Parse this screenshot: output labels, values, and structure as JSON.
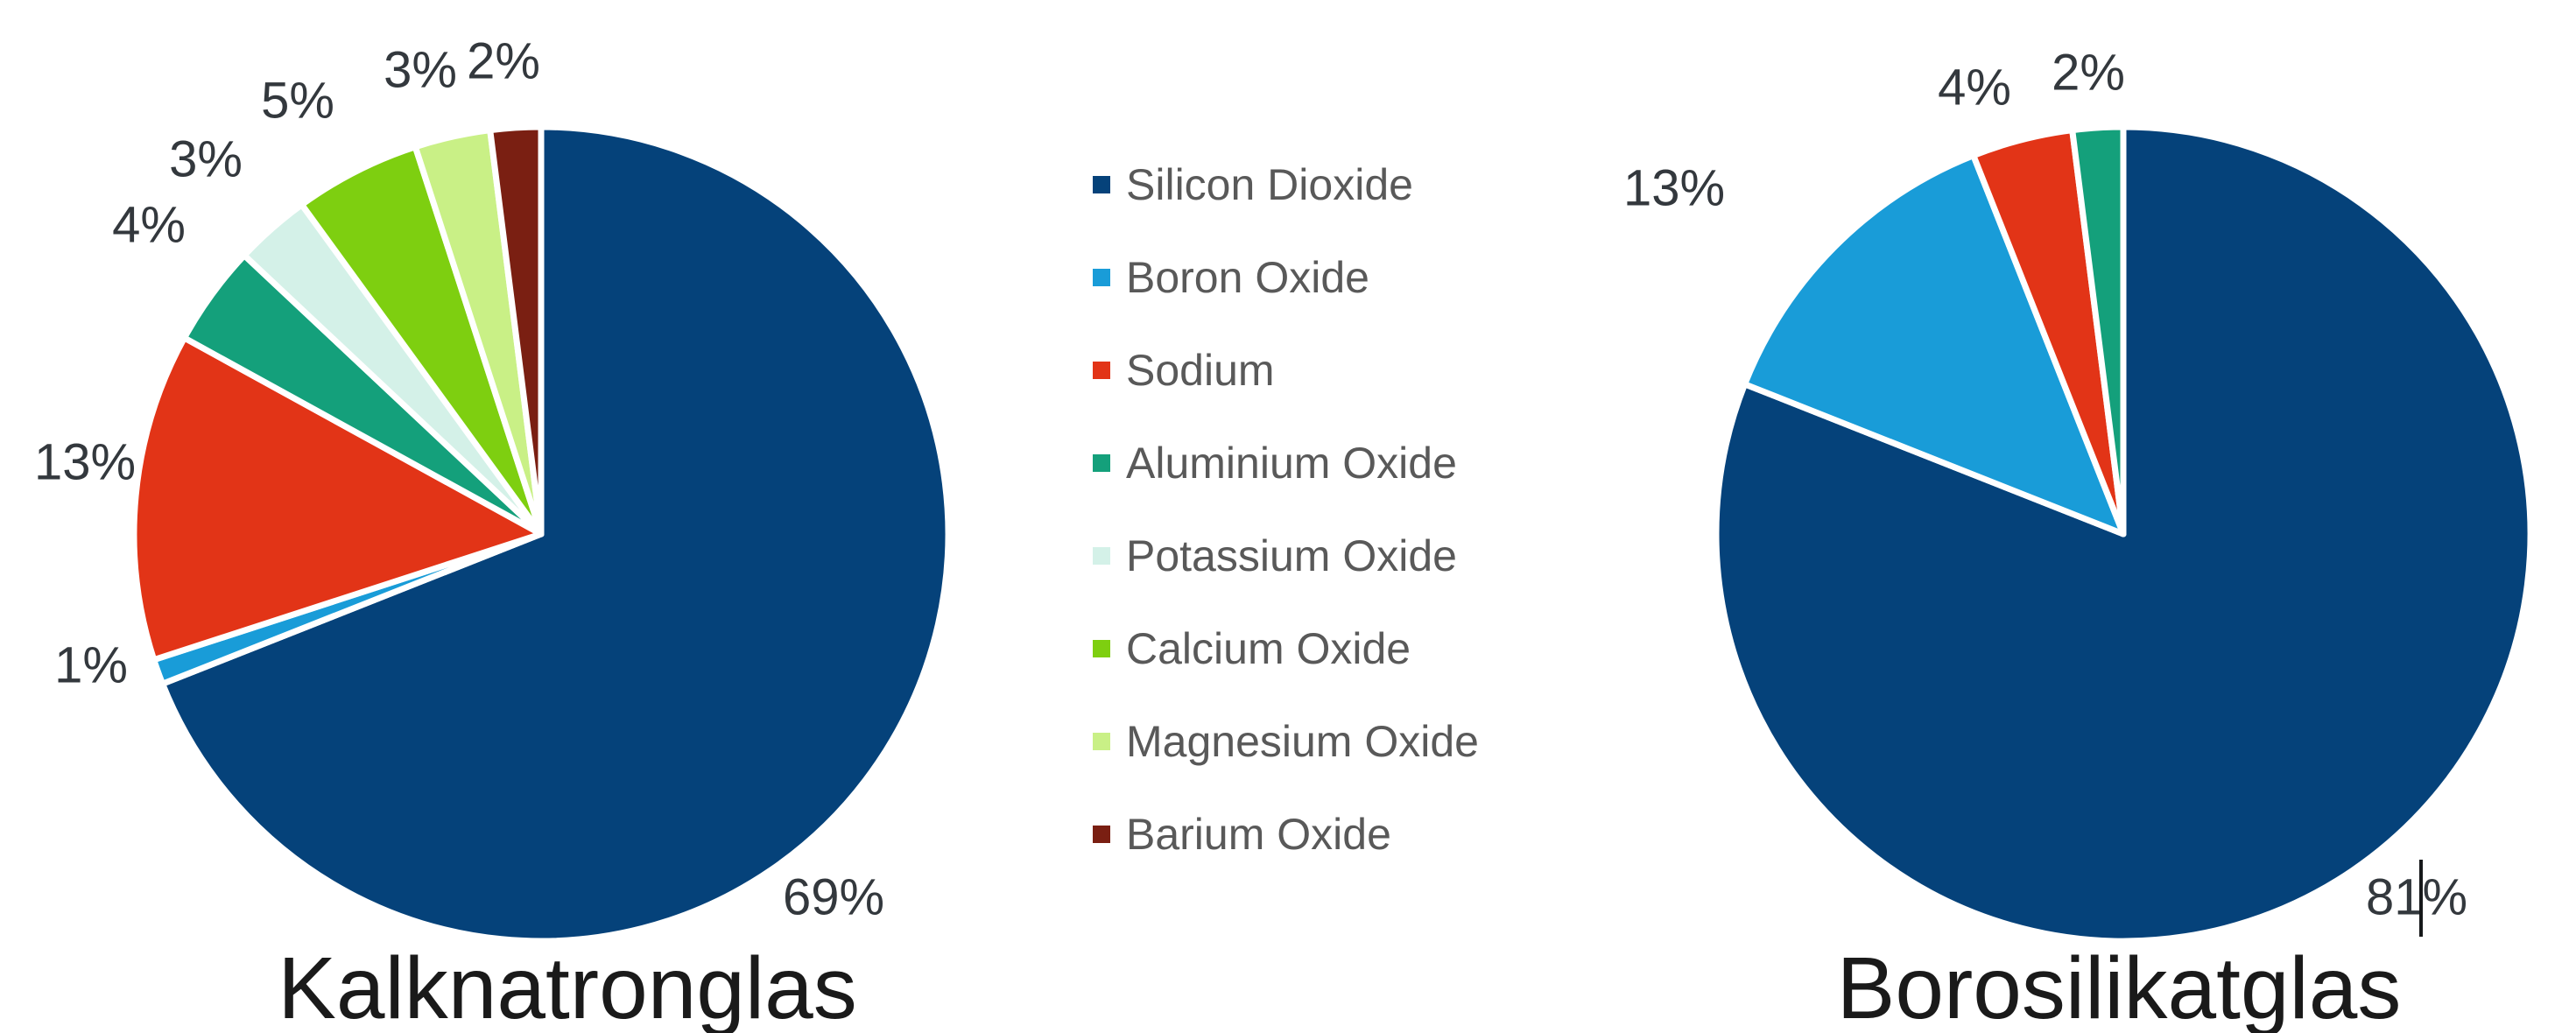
{
  "page": {
    "background": "#ffffff"
  },
  "legend": {
    "text_color": "#595959",
    "items": [
      {
        "label": "Silicon Dioxide",
        "color": "#05427a"
      },
      {
        "label": "Boron Oxide",
        "color": "#199cd8"
      },
      {
        "label": "Sodium",
        "color": "#e23417"
      },
      {
        "label": "Aluminium Oxide",
        "color": "#14a07b"
      },
      {
        "label": "Potassium Oxide",
        "color": "#d4f1e8"
      },
      {
        "label": "Calcium Oxide",
        "color": "#7ecf10"
      },
      {
        "label": "Magnesium Oxide",
        "color": "#c9f086"
      },
      {
        "label": "Barium Oxide",
        "color": "#7a1f12"
      }
    ]
  },
  "chart_data": [
    {
      "type": "pie",
      "title": "Kalknatronglas",
      "unit": "%",
      "start_angle_deg": 0,
      "direction": "clockwise",
      "legend_position": "right-of-chart (shared, center of image)",
      "slices": [
        {
          "label": "Silicon Dioxide",
          "value": 69,
          "display": "69%",
          "color": "#05427a"
        },
        {
          "label": "Boron Oxide",
          "value": 1,
          "display": "1%",
          "color": "#199cd8"
        },
        {
          "label": "Sodium",
          "value": 13,
          "display": "13%",
          "color": "#e23417"
        },
        {
          "label": "Aluminium Oxide",
          "value": 4,
          "display": "4%",
          "color": "#14a07b"
        },
        {
          "label": "Potassium Oxide",
          "value": 3,
          "display": "3%",
          "color": "#d4f1e8"
        },
        {
          "label": "Calcium Oxide",
          "value": 5,
          "display": "5%",
          "color": "#7ecf10"
        },
        {
          "label": "Magnesium Oxide",
          "value": 3,
          "display": "3%",
          "color": "#c9f086"
        },
        {
          "label": "Barium Oxide",
          "value": 2,
          "display": "2%",
          "color": "#7a1f12"
        }
      ]
    },
    {
      "type": "pie",
      "title": "Borosilikatglas",
      "unit": "%",
      "start_angle_deg": 0,
      "direction": "clockwise",
      "legend_position": "left-of-chart (shared, center of image)",
      "slices": [
        {
          "label": "Silicon Dioxide",
          "value": 81,
          "display": "81%",
          "color": "#05427a"
        },
        {
          "label": "Boron Oxide",
          "value": 13,
          "display": "13%",
          "color": "#199cd8"
        },
        {
          "label": "Sodium",
          "value": 4,
          "display": "4%",
          "color": "#e23417"
        },
        {
          "label": "Aluminium Oxide",
          "value": 2,
          "display": "2%",
          "color": "#14a07b"
        }
      ]
    }
  ],
  "artifacts": {
    "text_cursor": {
      "visible": true,
      "location": "vertical caret line between '81' and '%' in the Borosilikatglas 81% data label"
    }
  }
}
